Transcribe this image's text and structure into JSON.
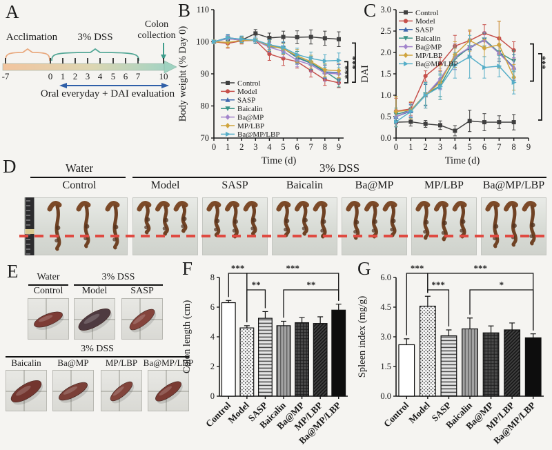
{
  "panels": {
    "a": "A",
    "b": "B",
    "c": "C",
    "d": "D",
    "e": "E",
    "f": "F",
    "g": "G"
  },
  "groups": [
    "Control",
    "Model",
    "SASP",
    "Baicalin",
    "Ba@MP",
    "MP/LBP",
    "Ba@MP/LBP"
  ],
  "colors": {
    "control": "#3f3f3f",
    "model": "#c6504b",
    "sasp": "#3f68ae",
    "baicalin": "#3a9488",
    "bamp": "#a284cb",
    "mplbp": "#cfa43e",
    "bamplbp": "#56aec8",
    "red_dash": "#df4a41",
    "timeline_orange": "#e9a97e",
    "timeline_teal": "#53a796",
    "oral_arrow_blue": "#2f5fa8"
  },
  "timeline": {
    "acclimation_label": "Acclimation",
    "dss_label": "3% DSS",
    "collection_label_line1": "Colon",
    "collection_label_line2": "collection",
    "oral_label": "Oral everyday + DAI evaluation",
    "tick_labels": [
      "-7",
      "0",
      "1",
      "2",
      "3",
      "4",
      "5",
      "6",
      "7",
      "10"
    ]
  },
  "panelD": {
    "water_label": "Water",
    "water_group": "Control",
    "dss_label": "3% DSS",
    "treatment_labels": [
      "Model",
      "SASP",
      "Baicalin",
      "Ba@MP",
      "MP/LBP",
      "Ba@MP/LBP"
    ]
  },
  "panelE": {
    "water_label": "Water",
    "dss_label_top": "3% DSS",
    "dss_label_bottom": "3% DSS",
    "row1_labels": [
      "Control",
      "Model",
      "SASP"
    ],
    "row2_labels": [
      "Baicalin",
      "Ba@MP",
      "MP/LBP",
      "Ba@MP/LBP"
    ]
  },
  "chart_data": [
    {
      "id": "chartB",
      "type": "line",
      "title": "",
      "xlabel": "Time (d)",
      "ylabel": "Body weight (% Day 0)",
      "xlim": [
        0,
        9.35
      ],
      "ylim": [
        70,
        110
      ],
      "x": [
        0,
        1,
        2,
        3,
        4,
        5,
        6,
        7,
        8,
        9
      ],
      "xticks": [
        0,
        1,
        2,
        3,
        4,
        5,
        6,
        7,
        8,
        9
      ],
      "xtick_labels": [
        "0",
        "1",
        "2",
        "3",
        "4",
        "5",
        "6",
        "7",
        "8",
        "9"
      ],
      "yticks": [
        70,
        80,
        90,
        100,
        110
      ],
      "ytick_labels": [
        "70",
        "80",
        "90",
        "100",
        "110"
      ],
      "legend_position": "bottom-left",
      "grid": false,
      "series": [
        {
          "name": "Control",
          "color": "#3f3f3f",
          "marker": "square",
          "values": [
            100,
            101,
            100.5,
            102.6,
            101.2,
            101.5,
            101.4,
            101.5,
            101.1,
            100.8
          ],
          "errors": [
            0.5,
            1,
            1,
            1.2,
            1.5,
            1.8,
            2,
            2.2,
            2.2,
            2.3
          ]
        },
        {
          "name": "Model",
          "color": "#c6504b",
          "marker": "circle",
          "values": [
            100,
            99.5,
            100.3,
            100.4,
            96.2,
            94.8,
            93.8,
            91,
            88.2,
            87.2
          ],
          "errors": [
            0.5,
            1.5,
            1,
            1,
            2,
            2.2,
            2,
            2,
            1.8,
            1.5
          ]
        },
        {
          "name": "SASP",
          "color": "#3f68ae",
          "marker": "tri-up",
          "values": [
            100,
            101.3,
            100.7,
            100.5,
            99,
            98,
            95,
            93.3,
            90.6,
            90.4
          ],
          "errors": [
            0.5,
            1,
            1,
            1,
            1.5,
            1.8,
            2,
            2,
            2,
            2.5
          ]
        },
        {
          "name": "Baicalin",
          "color": "#3a9488",
          "marker": "tri-down",
          "values": [
            100,
            101.1,
            100.6,
            100.4,
            98.5,
            98,
            95.2,
            93.4,
            90.8,
            87.9
          ],
          "errors": [
            0.5,
            1,
            1,
            1,
            1.5,
            1.5,
            1.8,
            2,
            2,
            2
          ]
        },
        {
          "name": "Ba@MP",
          "color": "#a284cb",
          "marker": "diamond",
          "values": [
            100,
            101,
            100.5,
            100.4,
            98.3,
            97,
            94.2,
            92.8,
            90.2,
            90
          ],
          "errors": [
            0.5,
            1,
            1,
            1,
            1.5,
            1.8,
            2,
            2.2,
            2.5,
            3
          ]
        },
        {
          "name": "MP/LBP",
          "color": "#cfa43e",
          "marker": "diamond",
          "values": [
            100,
            99.8,
            100.4,
            100.5,
            98.8,
            97.8,
            95.6,
            93.8,
            91.2,
            91
          ],
          "errors": [
            0.5,
            1.5,
            1,
            1,
            1.5,
            1.8,
            2,
            2,
            2,
            2.2
          ]
        },
        {
          "name": "Ba@MP/LBP",
          "color": "#56aec8",
          "marker": "tri-right",
          "values": [
            100,
            101.2,
            100.8,
            100.5,
            99.1,
            98.2,
            96,
            94.8,
            94,
            94.2
          ],
          "errors": [
            0.5,
            1,
            1,
            1,
            1.5,
            1.8,
            2,
            2,
            2,
            2.3
          ]
        }
      ],
      "brackets": [
        {
          "y1": 93.8,
          "y2": 87.2,
          "label": "***",
          "dx": 6,
          "ldx": -8
        },
        {
          "y1": 99.6,
          "y2": 87.4,
          "label": "***",
          "dx": 17,
          "ldx": -8
        }
      ]
    },
    {
      "id": "chartC",
      "type": "line",
      "title": "",
      "xlabel": "Time (d)",
      "ylabel": "DAI",
      "xlim": [
        0,
        9
      ],
      "ylim": [
        0,
        3
      ],
      "x": [
        0,
        1,
        2,
        3,
        4,
        5,
        6,
        7,
        8
      ],
      "xticks": [
        0,
        1,
        2,
        3,
        4,
        5,
        6,
        7,
        8,
        9
      ],
      "xtick_labels": [
        "0",
        "1",
        "2",
        "3",
        "4",
        "5",
        "6",
        "7",
        "8",
        "9"
      ],
      "yticks": [
        0,
        0.5,
        1,
        1.5,
        2,
        2.5,
        3
      ],
      "ytick_labels": [
        "0.0",
        "0.5",
        "1.0",
        "1.5",
        "2.0",
        "2.5",
        "3.0"
      ],
      "legend_position": "top-left",
      "grid": false,
      "series": [
        {
          "name": "Control",
          "color": "#3f3f3f",
          "marker": "square",
          "values": [
            0.37,
            0.38,
            0.33,
            0.3,
            0.17,
            0.4,
            0.37,
            0.37,
            0.37
          ],
          "errors": [
            0.1,
            0.1,
            0.08,
            0.1,
            0.12,
            0.25,
            0.2,
            0.15,
            0.18
          ]
        },
        {
          "name": "Model",
          "color": "#c6504b",
          "marker": "circle",
          "values": [
            0.63,
            0.68,
            1.45,
            1.73,
            2.15,
            2.28,
            2.45,
            2.33,
            2.05
          ],
          "errors": [
            0.3,
            0.15,
            0.12,
            0.15,
            0.25,
            0.22,
            0.2,
            0.4,
            0.2
          ]
        },
        {
          "name": "SASP",
          "color": "#3f68ae",
          "marker": "tri-up",
          "values": [
            0.5,
            0.63,
            1,
            1.35,
            1.9,
            2.1,
            2.3,
            2,
            1.65
          ],
          "errors": [
            0.15,
            0.15,
            0.25,
            0.2,
            0.25,
            0.2,
            0.15,
            0.15,
            0.3
          ]
        },
        {
          "name": "Baicalin",
          "color": "#3a9488",
          "marker": "tri-down",
          "values": [
            0.55,
            0.65,
            1.02,
            1.22,
            1.85,
            2.12,
            2.3,
            2,
            1.8
          ],
          "errors": [
            0.15,
            0.15,
            0.25,
            0.25,
            0.25,
            0.2,
            0.15,
            0.2,
            0.25
          ]
        },
        {
          "name": "Ba@MP",
          "color": "#a284cb",
          "marker": "diamond",
          "values": [
            0.5,
            0.65,
            1,
            1.38,
            1.9,
            2.12,
            2.28,
            1.98,
            1.63
          ],
          "errors": [
            0.15,
            0.15,
            0.3,
            0.25,
            0.3,
            0.2,
            0.2,
            0.2,
            0.25
          ]
        },
        {
          "name": "MP/LBP",
          "color": "#cfa43e",
          "marker": "diamond",
          "values": [
            0.62,
            0.65,
            1,
            1.3,
            1.95,
            2.28,
            2.1,
            2.18,
            1.42
          ],
          "errors": [
            0.35,
            0.2,
            0.3,
            0.4,
            0.3,
            0.25,
            0.2,
            0.55,
            0.3
          ]
        },
        {
          "name": "Ba@MP/LBP",
          "color": "#56aec8",
          "marker": "tri-right",
          "values": [
            0.38,
            0.62,
            1,
            1.2,
            1.7,
            1.9,
            1.65,
            1.68,
            1.3
          ],
          "errors": [
            0.12,
            0.15,
            0.3,
            0.3,
            0.3,
            0.5,
            0.25,
            0.25,
            0.27
          ]
        }
      ],
      "brackets": [
        {
          "y1": 2.2,
          "y2": 1.33,
          "label": "***",
          "dx": 7,
          "ldx": 9
        },
        {
          "y1": 1.97,
          "y2": 0.42,
          "label": "",
          "dx": 19,
          "ldx": 0
        }
      ]
    },
    {
      "id": "chartF",
      "type": "bar",
      "title": "",
      "xlabel": "",
      "ylabel": "Colon length (cm)",
      "categories": [
        "Control",
        "Model",
        "SASP",
        "Baicalin",
        "Ba@MP",
        "MP/LBP",
        "Ba@MP/LBP"
      ],
      "values": [
        6.3,
        4.6,
        5.25,
        4.75,
        4.95,
        4.9,
        5.8
      ],
      "errors": [
        0.15,
        0.15,
        0.45,
        0.3,
        0.35,
        0.45,
        0.4
      ],
      "patterns": [
        "white",
        "dots",
        "hlines",
        "vlines",
        "cross",
        "diag",
        "black"
      ],
      "ylim": [
        0,
        8
      ],
      "yticks": [
        0,
        2,
        4,
        6,
        8
      ],
      "ytick_labels": [
        "0",
        "2",
        "4",
        "6",
        "8"
      ],
      "significance": [
        {
          "a": 0,
          "b": 1,
          "label": "***",
          "level": 0
        },
        {
          "a": 1,
          "b": 6,
          "label": "***",
          "level": 0
        },
        {
          "a": 1,
          "b": 2,
          "label": "**",
          "level": 1
        },
        {
          "a": 3,
          "b": 6,
          "label": "**",
          "level": 1
        }
      ]
    },
    {
      "id": "chartG",
      "type": "bar",
      "title": "",
      "xlabel": "",
      "ylabel": "Spleen index (mg/g)",
      "categories": [
        "Control",
        "Model",
        "SASP",
        "Baicalin",
        "Ba@MP",
        "MP/LBP",
        "Ba@MP/LBP"
      ],
      "values": [
        2.6,
        4.55,
        3.05,
        3.4,
        3.2,
        3.35,
        2.95
      ],
      "errors": [
        0.3,
        0.5,
        0.3,
        0.55,
        0.35,
        0.35,
        0.2
      ],
      "patterns": [
        "white",
        "dots",
        "hlines",
        "vlines",
        "cross",
        "diag",
        "black"
      ],
      "ylim": [
        0,
        6
      ],
      "yticks": [
        0,
        1.5,
        3,
        4.5,
        6
      ],
      "ytick_labels": [
        "0.0",
        "1.5",
        "3.0",
        "4.5",
        "6.0"
      ],
      "significance": [
        {
          "a": 0,
          "b": 1,
          "label": "***",
          "level": 0
        },
        {
          "a": 1,
          "b": 6,
          "label": "***",
          "level": 0
        },
        {
          "a": 1,
          "b": 2,
          "label": "***",
          "level": 1
        },
        {
          "a": 3,
          "b": 6,
          "label": "*",
          "level": 1
        }
      ]
    }
  ]
}
